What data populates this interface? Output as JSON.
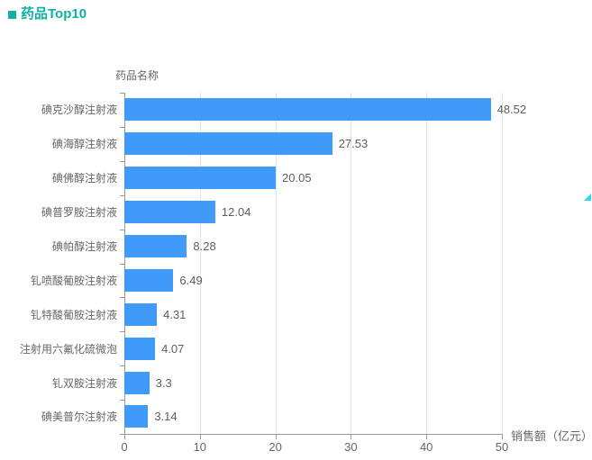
{
  "header": {
    "title": "药品Top10"
  },
  "chart_data": {
    "type": "bar",
    "orientation": "horizontal",
    "title": "药品Top10",
    "categories": [
      "碘克沙醇注射液",
      "碘海醇注射液",
      "碘佛醇注射液",
      "碘普罗胺注射液",
      "碘帕醇注射液",
      "钆喷酸葡胺注射液",
      "钆特酸葡胺注射液",
      "注射用六氟化硫微泡",
      "钆双胺注射液",
      "碘美普尔注射液"
    ],
    "values": [
      48.52,
      27.53,
      20.05,
      12.04,
      8.28,
      6.49,
      4.31,
      4.07,
      3.3,
      3.14
    ],
    "value_labels": [
      "48.52",
      "27.53",
      "20.05",
      "12.04",
      "8.28",
      "6.49",
      "4.31",
      "4.07",
      "3.3",
      "3.14"
    ],
    "xlabel": "销售额（亿元）",
    "ylabel": "药品名称",
    "xlim": [
      0,
      50
    ],
    "x_ticks": [
      "0",
      "10",
      "20",
      "30",
      "40",
      "50"
    ],
    "grid": true,
    "legend_position": "none",
    "colors": {
      "bar": "#3f9bf7",
      "title": "#10b0a6",
      "grid": "#e0e6f1",
      "axis": "#999999",
      "text": "#666666",
      "corner_accent": "#35d3f0"
    }
  }
}
